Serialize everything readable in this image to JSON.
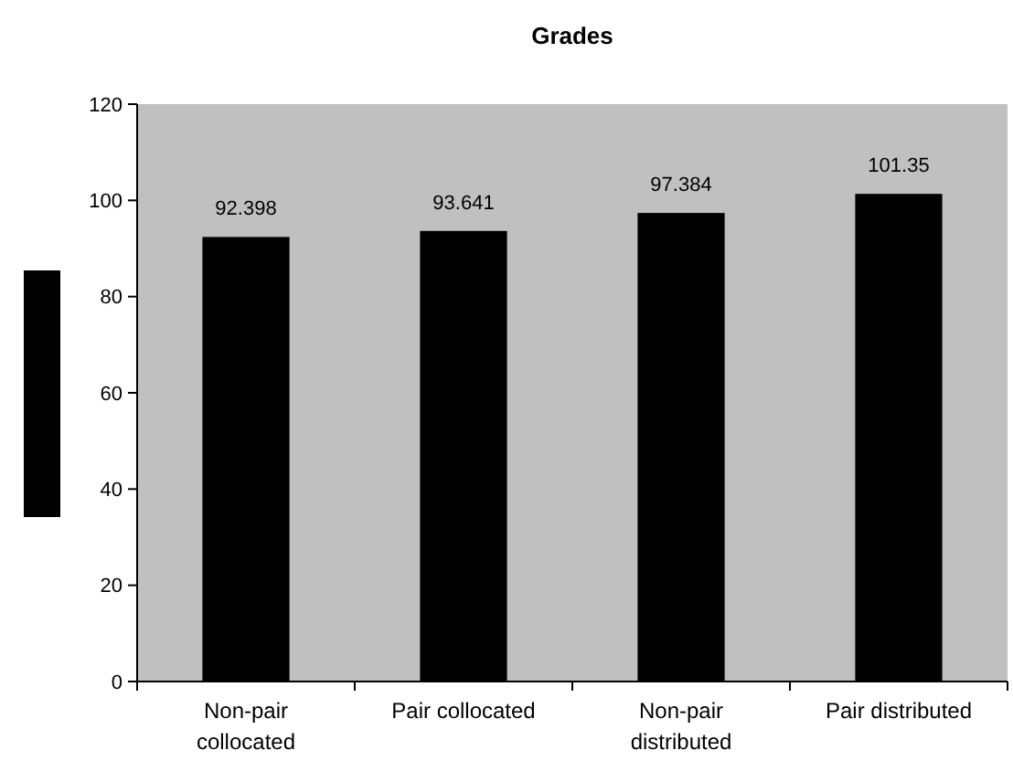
{
  "chart_data": {
    "type": "bar",
    "title": "Grades",
    "categories": [
      "Non-pair collocated",
      "Pair collocated",
      "Non-pair distributed",
      "Pair distributed"
    ],
    "values": [
      92.398,
      93.641,
      97.384,
      101.35
    ],
    "color": "#000000",
    "ylim": [
      0,
      120
    ],
    "yticks": [
      0,
      20,
      40,
      60,
      80,
      100,
      120
    ],
    "data_labels": true
  }
}
